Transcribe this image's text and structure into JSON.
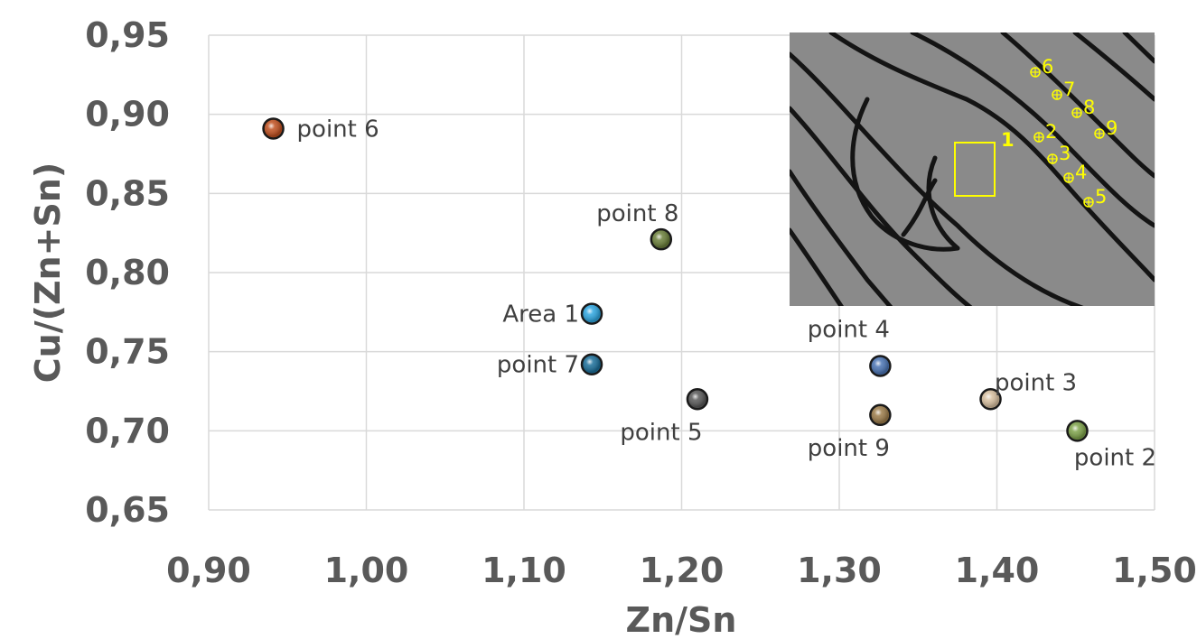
{
  "chart_data": {
    "type": "scatter",
    "xlabel": "Zn/Sn",
    "ylabel": "Cu/(Zn+Sn)",
    "xlim": [
      0.9,
      1.5
    ],
    "ylim": [
      0.65,
      0.95
    ],
    "grid": true,
    "x_ticks": [
      "0,90",
      "1,00",
      "1,10",
      "1,20",
      "1,30",
      "1,40",
      "1,50"
    ],
    "y_ticks": [
      "0,65",
      "0,70",
      "0,75",
      "0,80",
      "0,85",
      "0,90",
      "0,95"
    ],
    "points": [
      {
        "label": "point 6",
        "x": 0.941,
        "y": 0.891,
        "color": "#c0501f"
      },
      {
        "label": "point 8",
        "x": 1.187,
        "y": 0.821,
        "color": "#6b7f3a"
      },
      {
        "label": "Area 1",
        "x": 1.143,
        "y": 0.774,
        "color": "#2ea6e0"
      },
      {
        "label": "point 7",
        "x": 1.143,
        "y": 0.742,
        "color": "#1b6f9a"
      },
      {
        "label": "point 5",
        "x": 1.21,
        "y": 0.72,
        "color": "#595959"
      },
      {
        "label": "point 4",
        "x": 1.326,
        "y": 0.741,
        "color": "#4a74b4"
      },
      {
        "label": "point 9",
        "x": 1.326,
        "y": 0.71,
        "color": "#9c7c4a"
      },
      {
        "label": "point 3",
        "x": 1.396,
        "y": 0.72,
        "color": "#d8c0a0"
      },
      {
        "label": "point 2",
        "x": 1.451,
        "y": 0.7,
        "color": "#7ea34a"
      }
    ]
  },
  "inset": {
    "box_label": "1",
    "marker_labels": [
      "6",
      "7",
      "8",
      "2",
      "9",
      "3",
      "4",
      "5"
    ]
  }
}
